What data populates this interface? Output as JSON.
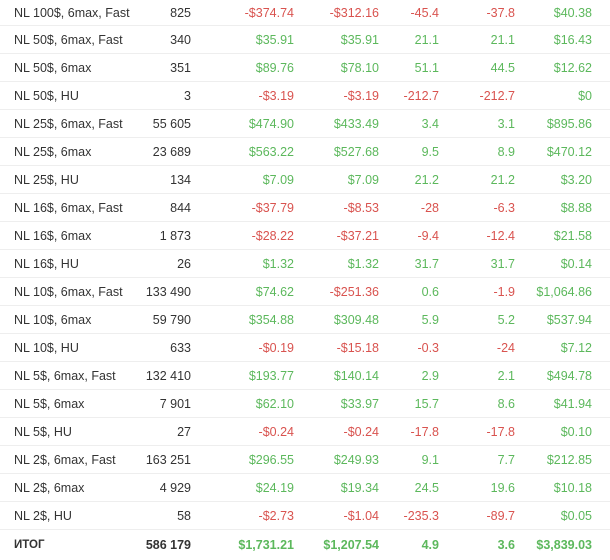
{
  "colors": {
    "positive": "#5cb85c",
    "negative": "#d9534f",
    "text": "#333333"
  },
  "rows": [
    {
      "name": "NL 100$, 6max, Fast",
      "hands": "825",
      "a": "-$374.74",
      "b": "-$312.16",
      "c": "-45.4",
      "d": "-37.8",
      "e": "$40.38"
    },
    {
      "name": "NL 50$, 6max, Fast",
      "hands": "340",
      "a": "$35.91",
      "b": "$35.91",
      "c": "21.1",
      "d": "21.1",
      "e": "$16.43"
    },
    {
      "name": "NL 50$, 6max",
      "hands": "351",
      "a": "$89.76",
      "b": "$78.10",
      "c": "51.1",
      "d": "44.5",
      "e": "$12.62"
    },
    {
      "name": "NL 50$, HU",
      "hands": "3",
      "a": "-$3.19",
      "b": "-$3.19",
      "c": "-212.7",
      "d": "-212.7",
      "e": "$0"
    },
    {
      "name": "NL 25$, 6max, Fast",
      "hands": "55 605",
      "a": "$474.90",
      "b": "$433.49",
      "c": "3.4",
      "d": "3.1",
      "e": "$895.86"
    },
    {
      "name": "NL 25$, 6max",
      "hands": "23 689",
      "a": "$563.22",
      "b": "$527.68",
      "c": "9.5",
      "d": "8.9",
      "e": "$470.12"
    },
    {
      "name": "NL 25$, HU",
      "hands": "134",
      "a": "$7.09",
      "b": "$7.09",
      "c": "21.2",
      "d": "21.2",
      "e": "$3.20"
    },
    {
      "name": "NL 16$, 6max, Fast",
      "hands": "844",
      "a": "-$37.79",
      "b": "-$8.53",
      "c": "-28",
      "d": "-6.3",
      "e": "$8.88"
    },
    {
      "name": "NL 16$, 6max",
      "hands": "1 873",
      "a": "-$28.22",
      "b": "-$37.21",
      "c": "-9.4",
      "d": "-12.4",
      "e": "$21.58"
    },
    {
      "name": "NL 16$, HU",
      "hands": "26",
      "a": "$1.32",
      "b": "$1.32",
      "c": "31.7",
      "d": "31.7",
      "e": "$0.14"
    },
    {
      "name": "NL 10$, 6max, Fast",
      "hands": "133 490",
      "a": "$74.62",
      "b": "-$251.36",
      "c": "0.6",
      "d": "-1.9",
      "e": "$1,064.86"
    },
    {
      "name": "NL 10$, 6max",
      "hands": "59 790",
      "a": "$354.88",
      "b": "$309.48",
      "c": "5.9",
      "d": "5.2",
      "e": "$537.94"
    },
    {
      "name": "NL 10$, HU",
      "hands": "633",
      "a": "-$0.19",
      "b": "-$15.18",
      "c": "-0.3",
      "d": "-24",
      "e": "$7.12"
    },
    {
      "name": "NL 5$, 6max, Fast",
      "hands": "132 410",
      "a": "$193.77",
      "b": "$140.14",
      "c": "2.9",
      "d": "2.1",
      "e": "$494.78"
    },
    {
      "name": "NL 5$, 6max",
      "hands": "7 901",
      "a": "$62.10",
      "b": "$33.97",
      "c": "15.7",
      "d": "8.6",
      "e": "$41.94"
    },
    {
      "name": "NL 5$, HU",
      "hands": "27",
      "a": "-$0.24",
      "b": "-$0.24",
      "c": "-17.8",
      "d": "-17.8",
      "e": "$0.10"
    },
    {
      "name": "NL 2$, 6max, Fast",
      "hands": "163 251",
      "a": "$296.55",
      "b": "$249.93",
      "c": "9.1",
      "d": "7.7",
      "e": "$212.85"
    },
    {
      "name": "NL 2$, 6max",
      "hands": "4 929",
      "a": "$24.19",
      "b": "$19.34",
      "c": "24.5",
      "d": "19.6",
      "e": "$10.18"
    },
    {
      "name": "NL 2$, HU",
      "hands": "58",
      "a": "-$2.73",
      "b": "-$1.04",
      "c": "-235.3",
      "d": "-89.7",
      "e": "$0.05"
    }
  ],
  "total": {
    "name": "ИТОГ",
    "hands": "586 179",
    "a": "$1,731.21",
    "b": "$1,207.54",
    "c": "4.9",
    "d": "3.6",
    "e": "$3,839.03"
  }
}
